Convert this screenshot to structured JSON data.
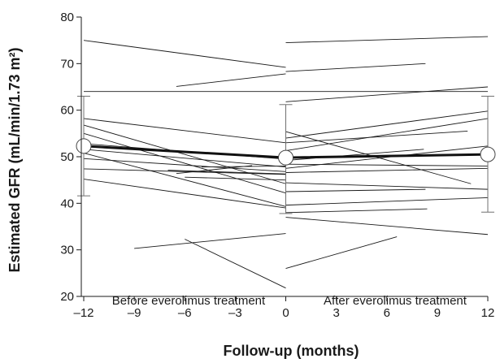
{
  "chart_data": {
    "type": "line",
    "xlabel": "Follow-up (months)",
    "ylabel": "Estimated GFR (mL/min/1.73 m²)",
    "xlim": [
      -12,
      12
    ],
    "ylim": [
      20,
      80
    ],
    "x_ticks": [
      -12,
      -9,
      -6,
      -3,
      0,
      3,
      6,
      9,
      12
    ],
    "x_tick_labels": [
      "–12",
      "–9",
      "–6",
      "–3",
      "0",
      "3",
      "6",
      "9",
      "12"
    ],
    "y_ticks": [
      20,
      30,
      40,
      50,
      60,
      70,
      80
    ],
    "grid": false,
    "annotations": [
      "Before everolimus treatment",
      "After everolimus treatment"
    ],
    "individual_before": [
      [
        [
          -12,
          75.0
        ],
        [
          0,
          69.2
        ]
      ],
      [
        [
          -12,
          64.0
        ],
        [
          0,
          64.0
        ]
      ],
      [
        [
          -12,
          58.2
        ],
        [
          0,
          53.0
        ]
      ],
      [
        [
          -12,
          56.8
        ],
        [
          0,
          44.2
        ]
      ],
      [
        [
          -12,
          55.0
        ],
        [
          0,
          42.2
        ]
      ],
      [
        [
          -12,
          52.8
        ],
        [
          0,
          49.5
        ]
      ],
      [
        [
          -12,
          51.6
        ],
        [
          0,
          47.8
        ]
      ],
      [
        [
          -12,
          50.8
        ],
        [
          0,
          39.3
        ]
      ],
      [
        [
          -12,
          49.6
        ],
        [
          0,
          46.8
        ]
      ],
      [
        [
          -12,
          47.4
        ],
        [
          0,
          46.2
        ]
      ],
      [
        [
          -12,
          45.2
        ],
        [
          0,
          39.0
        ]
      ],
      [
        [
          -6.5,
          65.1
        ],
        [
          0,
          67.8
        ]
      ],
      [
        [
          -7.0,
          47.1
        ],
        [
          0,
          46.3
        ]
      ],
      [
        [
          -5.0,
          47.8
        ],
        [
          0,
          48.0
        ]
      ],
      [
        [
          -6.5,
          46.4
        ],
        [
          -2.0,
          48.1
        ]
      ],
      [
        [
          -6.0,
          45.6
        ],
        [
          0,
          45.0
        ]
      ],
      [
        [
          -9.0,
          30.3
        ],
        [
          0,
          33.5
        ]
      ],
      [
        [
          -6.0,
          32.3
        ],
        [
          0,
          21.8
        ]
      ]
    ],
    "individual_after": [
      [
        [
          0,
          74.5
        ],
        [
          12,
          75.8
        ]
      ],
      [
        [
          0,
          68.3
        ],
        [
          8.3,
          70.0
        ]
      ],
      [
        [
          0,
          64.0
        ],
        [
          12,
          64.0
        ]
      ],
      [
        [
          0,
          61.8
        ],
        [
          12,
          65.0
        ]
      ],
      [
        [
          0,
          55.4
        ],
        [
          11.0,
          44.2
        ]
      ],
      [
        [
          0,
          54.0
        ],
        [
          12,
          59.8
        ]
      ],
      [
        [
          0,
          53.0
        ],
        [
          10.8,
          55.5
        ]
      ],
      [
        [
          0,
          51.3
        ],
        [
          12,
          58.2
        ]
      ],
      [
        [
          0,
          49.2
        ],
        [
          8.2,
          51.6
        ]
      ],
      [
        [
          0,
          48.4
        ],
        [
          12,
          48.0
        ]
      ],
      [
        [
          0,
          47.5
        ],
        [
          12,
          52.3
        ]
      ],
      [
        [
          0,
          46.6
        ],
        [
          12,
          47.5
        ]
      ],
      [
        [
          0,
          44.4
        ],
        [
          12,
          43.0
        ]
      ],
      [
        [
          0,
          42.5
        ],
        [
          8.3,
          43.0
        ]
      ],
      [
        [
          0,
          39.6
        ],
        [
          12,
          41.2
        ]
      ],
      [
        [
          0,
          38.0
        ],
        [
          8.4,
          38.8
        ]
      ],
      [
        [
          0,
          37.0
        ],
        [
          12,
          33.3
        ]
      ],
      [
        [
          0,
          26.0
        ],
        [
          6.6,
          32.8
        ]
      ]
    ],
    "mean_series": {
      "x": [
        -12,
        0,
        12
      ],
      "y": [
        52.3,
        49.8,
        50.5
      ],
      "error_low": [
        41.6,
        37.8,
        38.1
      ],
      "error_high": [
        63.0,
        61.2,
        63.0
      ]
    }
  }
}
